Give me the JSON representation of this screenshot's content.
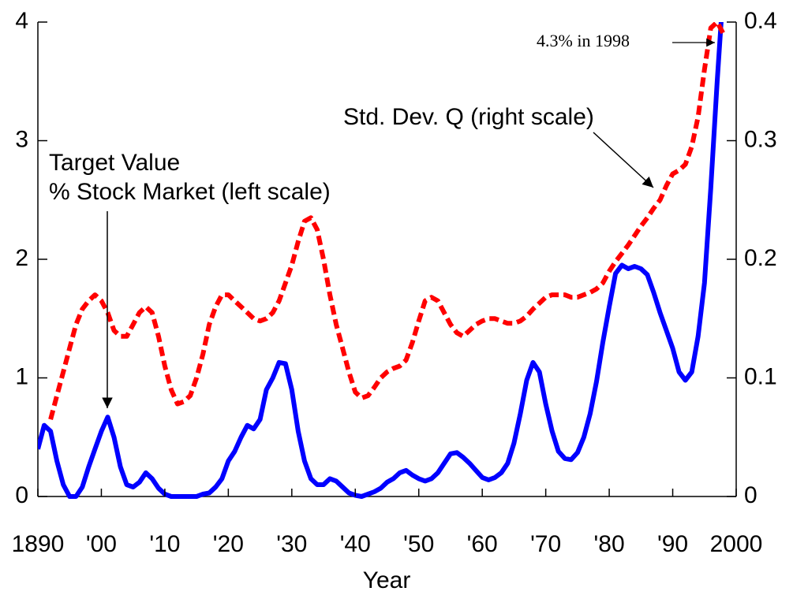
{
  "chart_data": {
    "type": "line",
    "xlabel": "Year",
    "annotations": [
      {
        "text": "Target Value"
      },
      {
        "text": "% Stock Market (left scale)"
      },
      {
        "text": "Std. Dev. Q (right scale)"
      },
      {
        "text": "4.3% in 1998"
      }
    ],
    "x": [
      1890,
      1891,
      1892,
      1893,
      1894,
      1895,
      1896,
      1897,
      1898,
      1899,
      1900,
      1901,
      1902,
      1903,
      1904,
      1905,
      1906,
      1907,
      1908,
      1909,
      1910,
      1911,
      1912,
      1913,
      1914,
      1915,
      1916,
      1917,
      1918,
      1919,
      1920,
      1921,
      1922,
      1923,
      1924,
      1925,
      1926,
      1927,
      1928,
      1929,
      1930,
      1931,
      1932,
      1933,
      1934,
      1935,
      1936,
      1937,
      1938,
      1939,
      1940,
      1941,
      1942,
      1943,
      1944,
      1945,
      1946,
      1947,
      1948,
      1949,
      1950,
      1951,
      1952,
      1953,
      1954,
      1955,
      1956,
      1957,
      1958,
      1959,
      1960,
      1961,
      1962,
      1963,
      1964,
      1965,
      1966,
      1967,
      1968,
      1969,
      1970,
      1971,
      1972,
      1973,
      1974,
      1975,
      1976,
      1977,
      1978,
      1979,
      1980,
      1981,
      1982,
      1983,
      1984,
      1985,
      1986,
      1987,
      1988,
      1989,
      1990,
      1991,
      1992,
      1993,
      1994,
      1995,
      1996,
      1997,
      1998
    ],
    "series": [
      {
        "color": "#0000ff",
        "dash": false,
        "values": [
          0.4,
          0.6,
          0.55,
          0.3,
          0.1,
          0,
          0,
          0.08,
          0.25,
          0.4,
          0.55,
          0.67,
          0.5,
          0.25,
          0.1,
          0.08,
          0.12,
          0.2,
          0.15,
          0.07,
          0.02,
          0,
          0,
          0,
          0,
          0,
          0.02,
          0.03,
          0.08,
          0.15,
          0.3,
          0.38,
          0.5,
          0.6,
          0.57,
          0.65,
          0.9,
          1.0,
          1.13,
          1.12,
          0.9,
          0.55,
          0.3,
          0.15,
          0.1,
          0.1,
          0.15,
          0.13,
          0.08,
          0.03,
          0.01,
          0,
          0.02,
          0.04,
          0.07,
          0.12,
          0.15,
          0.2,
          0.22,
          0.18,
          0.15,
          0.13,
          0.15,
          0.2,
          0.28,
          0.36,
          0.37,
          0.33,
          0.28,
          0.22,
          0.16,
          0.14,
          0.16,
          0.2,
          0.28,
          0.45,
          0.7,
          0.98,
          1.13,
          1.05,
          0.78,
          0.55,
          0.38,
          0.32,
          0.31,
          0.37,
          0.5,
          0.7,
          0.97,
          1.3,
          1.6,
          1.88,
          1.95,
          1.92,
          1.94,
          1.92,
          1.87,
          1.72,
          1.55,
          1.4,
          1.25,
          1.05,
          0.98,
          1.05,
          1.35,
          1.8,
          2.6,
          3.5,
          4.3
        ]
      },
      {
        "color": "#ff0000",
        "dash": true,
        "axis": "y2",
        "values": [
          null,
          null,
          0.065,
          0.085,
          0.105,
          0.125,
          0.145,
          0.158,
          0.165,
          0.17,
          0.165,
          0.155,
          0.14,
          0.135,
          0.135,
          0.145,
          0.155,
          0.16,
          0.155,
          0.135,
          0.11,
          0.09,
          0.078,
          0.08,
          0.085,
          0.1,
          0.12,
          0.145,
          0.16,
          0.17,
          0.17,
          0.165,
          0.16,
          0.155,
          0.15,
          0.148,
          0.15,
          0.155,
          0.165,
          0.18,
          0.195,
          0.215,
          0.232,
          0.235,
          0.225,
          0.2,
          0.17,
          0.145,
          0.125,
          0.105,
          0.088,
          0.083,
          0.085,
          0.092,
          0.1,
          0.105,
          0.108,
          0.11,
          0.115,
          0.13,
          0.148,
          0.165,
          0.168,
          0.165,
          0.155,
          0.145,
          0.138,
          0.135,
          0.14,
          0.145,
          0.148,
          0.15,
          0.15,
          0.148,
          0.146,
          0.146,
          0.148,
          0.152,
          0.158,
          0.163,
          0.168,
          0.17,
          0.17,
          0.17,
          0.168,
          0.168,
          0.17,
          0.172,
          0.175,
          0.18,
          0.19,
          0.198,
          0.205,
          0.212,
          0.22,
          0.228,
          0.235,
          0.243,
          0.25,
          0.262,
          0.272,
          0.275,
          0.28,
          0.295,
          0.32,
          0.36,
          0.395,
          0.4,
          0.39
        ]
      }
    ],
    "xlim": [
      1890,
      2000
    ],
    "xticks": [
      1890,
      {
        "value": 1900,
        "label": "'00"
      },
      {
        "value": 1910,
        "label": "'10"
      },
      {
        "value": 1920,
        "label": "'20"
      },
      {
        "value": 1930,
        "label": "'30"
      },
      {
        "value": 1940,
        "label": "'40"
      },
      {
        "value": 1950,
        "label": "'50"
      },
      {
        "value": 1960,
        "label": "'60"
      },
      {
        "value": 1970,
        "label": "'70"
      },
      {
        "value": 1980,
        "label": "'80"
      },
      {
        "value": 1990,
        "label": "'90"
      },
      2000
    ],
    "ylim": [
      0,
      4
    ],
    "yticks": [
      0,
      1,
      2,
      3,
      4
    ],
    "y2lim": [
      0,
      0.4
    ],
    "y2ticks": [
      0,
      0.1,
      0.2,
      0.3,
      0.4
    ]
  }
}
